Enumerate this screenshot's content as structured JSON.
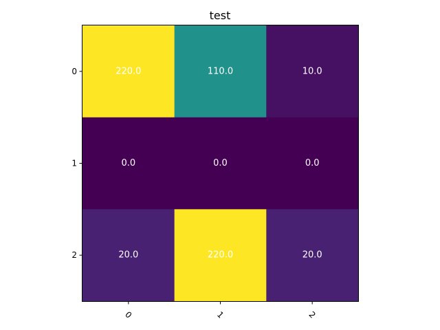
{
  "chart_data": {
    "type": "heatmap",
    "title": "test",
    "xlabel": "",
    "ylabel": "",
    "x_categories": [
      "0",
      "1",
      "2"
    ],
    "y_categories": [
      "0",
      "1",
      "2"
    ],
    "values": [
      [
        220.0,
        110.0,
        10.0
      ],
      [
        0.0,
        0.0,
        0.0
      ],
      [
        20.0,
        220.0,
        20.0
      ]
    ],
    "value_labels": [
      [
        "220.0",
        "110.0",
        "10.0"
      ],
      [
        "0.0",
        "0.0",
        "0.0"
      ],
      [
        "20.0",
        "220.0",
        "20.0"
      ]
    ],
    "vmin": 0,
    "vmax": 220,
    "colormap": "viridis",
    "x_tick_rotation": 45,
    "label_color": "#ffffff",
    "grid": false,
    "legend": "none"
  }
}
